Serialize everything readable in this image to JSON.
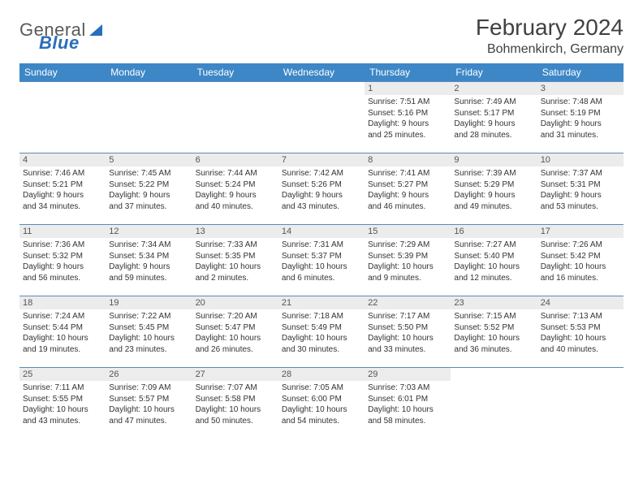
{
  "logo": {
    "text1": "General",
    "text2": "Blue"
  },
  "title": "February 2024",
  "location": "Bohmenkirch, Germany",
  "colors": {
    "header_bg": "#3d87c7",
    "header_text": "#ffffff",
    "daynum_bg": "#ececec",
    "row_border": "#5c8ab8",
    "logo_blue": "#2a6ebb",
    "logo_gray": "#58595b"
  },
  "weekdays": [
    "Sunday",
    "Monday",
    "Tuesday",
    "Wednesday",
    "Thursday",
    "Friday",
    "Saturday"
  ],
  "rows": [
    [
      null,
      null,
      null,
      null,
      {
        "n": "1",
        "sr": "Sunrise: 7:51 AM",
        "ss": "Sunset: 5:16 PM",
        "d1": "Daylight: 9 hours",
        "d2": "and 25 minutes."
      },
      {
        "n": "2",
        "sr": "Sunrise: 7:49 AM",
        "ss": "Sunset: 5:17 PM",
        "d1": "Daylight: 9 hours",
        "d2": "and 28 minutes."
      },
      {
        "n": "3",
        "sr": "Sunrise: 7:48 AM",
        "ss": "Sunset: 5:19 PM",
        "d1": "Daylight: 9 hours",
        "d2": "and 31 minutes."
      }
    ],
    [
      {
        "n": "4",
        "sr": "Sunrise: 7:46 AM",
        "ss": "Sunset: 5:21 PM",
        "d1": "Daylight: 9 hours",
        "d2": "and 34 minutes."
      },
      {
        "n": "5",
        "sr": "Sunrise: 7:45 AM",
        "ss": "Sunset: 5:22 PM",
        "d1": "Daylight: 9 hours",
        "d2": "and 37 minutes."
      },
      {
        "n": "6",
        "sr": "Sunrise: 7:44 AM",
        "ss": "Sunset: 5:24 PM",
        "d1": "Daylight: 9 hours",
        "d2": "and 40 minutes."
      },
      {
        "n": "7",
        "sr": "Sunrise: 7:42 AM",
        "ss": "Sunset: 5:26 PM",
        "d1": "Daylight: 9 hours",
        "d2": "and 43 minutes."
      },
      {
        "n": "8",
        "sr": "Sunrise: 7:41 AM",
        "ss": "Sunset: 5:27 PM",
        "d1": "Daylight: 9 hours",
        "d2": "and 46 minutes."
      },
      {
        "n": "9",
        "sr": "Sunrise: 7:39 AM",
        "ss": "Sunset: 5:29 PM",
        "d1": "Daylight: 9 hours",
        "d2": "and 49 minutes."
      },
      {
        "n": "10",
        "sr": "Sunrise: 7:37 AM",
        "ss": "Sunset: 5:31 PM",
        "d1": "Daylight: 9 hours",
        "d2": "and 53 minutes."
      }
    ],
    [
      {
        "n": "11",
        "sr": "Sunrise: 7:36 AM",
        "ss": "Sunset: 5:32 PM",
        "d1": "Daylight: 9 hours",
        "d2": "and 56 minutes."
      },
      {
        "n": "12",
        "sr": "Sunrise: 7:34 AM",
        "ss": "Sunset: 5:34 PM",
        "d1": "Daylight: 9 hours",
        "d2": "and 59 minutes."
      },
      {
        "n": "13",
        "sr": "Sunrise: 7:33 AM",
        "ss": "Sunset: 5:35 PM",
        "d1": "Daylight: 10 hours",
        "d2": "and 2 minutes."
      },
      {
        "n": "14",
        "sr": "Sunrise: 7:31 AM",
        "ss": "Sunset: 5:37 PM",
        "d1": "Daylight: 10 hours",
        "d2": "and 6 minutes."
      },
      {
        "n": "15",
        "sr": "Sunrise: 7:29 AM",
        "ss": "Sunset: 5:39 PM",
        "d1": "Daylight: 10 hours",
        "d2": "and 9 minutes."
      },
      {
        "n": "16",
        "sr": "Sunrise: 7:27 AM",
        "ss": "Sunset: 5:40 PM",
        "d1": "Daylight: 10 hours",
        "d2": "and 12 minutes."
      },
      {
        "n": "17",
        "sr": "Sunrise: 7:26 AM",
        "ss": "Sunset: 5:42 PM",
        "d1": "Daylight: 10 hours",
        "d2": "and 16 minutes."
      }
    ],
    [
      {
        "n": "18",
        "sr": "Sunrise: 7:24 AM",
        "ss": "Sunset: 5:44 PM",
        "d1": "Daylight: 10 hours",
        "d2": "and 19 minutes."
      },
      {
        "n": "19",
        "sr": "Sunrise: 7:22 AM",
        "ss": "Sunset: 5:45 PM",
        "d1": "Daylight: 10 hours",
        "d2": "and 23 minutes."
      },
      {
        "n": "20",
        "sr": "Sunrise: 7:20 AM",
        "ss": "Sunset: 5:47 PM",
        "d1": "Daylight: 10 hours",
        "d2": "and 26 minutes."
      },
      {
        "n": "21",
        "sr": "Sunrise: 7:18 AM",
        "ss": "Sunset: 5:49 PM",
        "d1": "Daylight: 10 hours",
        "d2": "and 30 minutes."
      },
      {
        "n": "22",
        "sr": "Sunrise: 7:17 AM",
        "ss": "Sunset: 5:50 PM",
        "d1": "Daylight: 10 hours",
        "d2": "and 33 minutes."
      },
      {
        "n": "23",
        "sr": "Sunrise: 7:15 AM",
        "ss": "Sunset: 5:52 PM",
        "d1": "Daylight: 10 hours",
        "d2": "and 36 minutes."
      },
      {
        "n": "24",
        "sr": "Sunrise: 7:13 AM",
        "ss": "Sunset: 5:53 PM",
        "d1": "Daylight: 10 hours",
        "d2": "and 40 minutes."
      }
    ],
    [
      {
        "n": "25",
        "sr": "Sunrise: 7:11 AM",
        "ss": "Sunset: 5:55 PM",
        "d1": "Daylight: 10 hours",
        "d2": "and 43 minutes."
      },
      {
        "n": "26",
        "sr": "Sunrise: 7:09 AM",
        "ss": "Sunset: 5:57 PM",
        "d1": "Daylight: 10 hours",
        "d2": "and 47 minutes."
      },
      {
        "n": "27",
        "sr": "Sunrise: 7:07 AM",
        "ss": "Sunset: 5:58 PM",
        "d1": "Daylight: 10 hours",
        "d2": "and 50 minutes."
      },
      {
        "n": "28",
        "sr": "Sunrise: 7:05 AM",
        "ss": "Sunset: 6:00 PM",
        "d1": "Daylight: 10 hours",
        "d2": "and 54 minutes."
      },
      {
        "n": "29",
        "sr": "Sunrise: 7:03 AM",
        "ss": "Sunset: 6:01 PM",
        "d1": "Daylight: 10 hours",
        "d2": "and 58 minutes."
      },
      null,
      null
    ]
  ]
}
